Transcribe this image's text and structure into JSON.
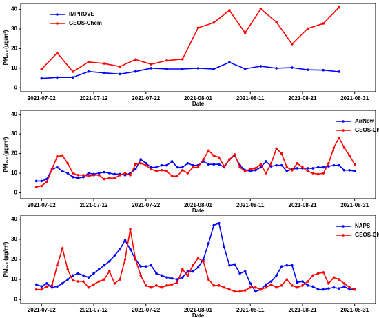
{
  "chart_data": [
    {
      "type": "line",
      "x_label": "Date",
      "y_label": "PM₂.₅ (μg/m³)",
      "legend": "upper left",
      "x": [
        "2021-07-02",
        "2021-07-05",
        "2021-07-08",
        "2021-07-11",
        "2021-07-14",
        "2021-07-17",
        "2021-07-20",
        "2021-07-23",
        "2021-07-26",
        "2021-07-29",
        "2021-08-01",
        "2021-08-04",
        "2021-08-07",
        "2021-08-10",
        "2021-08-13",
        "2021-08-16",
        "2021-08-19",
        "2021-08-22",
        "2021-08-25",
        "2021-08-28"
      ],
      "series": [
        {
          "name": "IMPROVE",
          "color": "#0000ff",
          "values": [
            4.8,
            5.3,
            5.3,
            8.3,
            7.6,
            7.0,
            8.3,
            10.0,
            9.6,
            9.6,
            10.0,
            9.6,
            13.0,
            9.7,
            11.0,
            10.0,
            10.3,
            9.2,
            9.0,
            8.2
          ]
        },
        {
          "name": "GEOS-Chem",
          "color": "#ff0000",
          "values": [
            9.5,
            17.8,
            8.2,
            13.2,
            12.4,
            10.8,
            14.4,
            12.0,
            13.9,
            14.6,
            30.6,
            33.2,
            39.5,
            28.0,
            40.2,
            33.5,
            22.3,
            30.2,
            32.8,
            41.0
          ]
        }
      ],
      "xlim": [
        "2021-06-28",
        "2021-09-04"
      ],
      "xticks": [
        "2021-07-02",
        "2021-07-12",
        "2021-07-22",
        "2021-08-01",
        "2021-08-11",
        "2021-08-21",
        "2021-08-31"
      ],
      "ylim": [
        -2,
        43
      ],
      "yticks": [
        0,
        10,
        20,
        30,
        40
      ]
    },
    {
      "type": "line",
      "x_label": "Date",
      "y_label": "PM₂.₅ (μg/m³)",
      "legend": "upper right",
      "x": [
        "2021-07-01",
        "2021-07-02",
        "2021-07-03",
        "2021-07-04",
        "2021-07-05",
        "2021-07-06",
        "2021-07-07",
        "2021-07-08",
        "2021-07-09",
        "2021-07-10",
        "2021-07-11",
        "2021-07-12",
        "2021-07-13",
        "2021-07-14",
        "2021-07-15",
        "2021-07-16",
        "2021-07-17",
        "2021-07-18",
        "2021-07-19",
        "2021-07-20",
        "2021-07-21",
        "2021-07-22",
        "2021-07-23",
        "2021-07-24",
        "2021-07-25",
        "2021-07-26",
        "2021-07-27",
        "2021-07-28",
        "2021-07-29",
        "2021-07-30",
        "2021-07-31",
        "2021-08-01",
        "2021-08-02",
        "2021-08-03",
        "2021-08-04",
        "2021-08-05",
        "2021-08-06",
        "2021-08-07",
        "2021-08-08",
        "2021-08-09",
        "2021-08-10",
        "2021-08-11",
        "2021-08-12",
        "2021-08-13",
        "2021-08-14",
        "2021-08-15",
        "2021-08-16",
        "2021-08-17",
        "2021-08-18",
        "2021-08-19",
        "2021-08-20",
        "2021-08-21",
        "2021-08-22",
        "2021-08-23",
        "2021-08-24",
        "2021-08-25",
        "2021-08-26",
        "2021-08-27",
        "2021-08-28",
        "2021-08-29",
        "2021-08-30",
        "2021-08-31"
      ],
      "series": [
        {
          "name": "AirNow",
          "color": "#0000ff",
          "values": [
            6,
            6,
            7,
            12,
            13,
            11,
            10,
            8,
            7.5,
            8,
            10,
            9.5,
            10,
            10.5,
            10,
            9.5,
            9.5,
            9,
            10,
            12,
            17,
            15,
            13,
            13,
            14,
            14,
            16,
            13,
            13,
            15,
            14,
            14,
            16,
            14.5,
            14.5,
            14.5,
            13,
            17,
            19,
            14,
            11.5,
            11,
            11.5,
            13,
            16,
            13.5,
            14,
            14,
            11,
            12,
            12.5,
            12.5,
            12.5,
            12.5,
            13,
            13,
            13.5,
            14,
            14,
            11.5,
            11.5,
            11
          ]
        },
        {
          "name": "GEOS-Chem",
          "color": "#ff0000",
          "values": [
            3,
            3.5,
            5.5,
            12,
            18.5,
            19,
            15,
            10,
            9,
            9,
            8.5,
            9,
            9,
            7,
            7.5,
            7.5,
            9,
            10,
            9,
            14.5,
            15,
            14,
            12,
            11,
            11.5,
            11,
            8.5,
            8.5,
            11.5,
            10,
            13,
            13,
            17,
            21.5,
            19,
            18,
            13.5,
            17,
            19.5,
            13,
            11,
            12,
            12.5,
            14.5,
            10,
            15,
            22.5,
            20,
            13,
            11.5,
            15,
            13,
            11,
            10,
            9.5,
            10,
            15,
            23,
            28,
            23,
            19,
            14.5
          ]
        }
      ],
      "xlim": [
        "2021-06-28",
        "2021-09-04"
      ],
      "xticks": [
        "2021-07-02",
        "2021-07-12",
        "2021-07-22",
        "2021-08-01",
        "2021-08-11",
        "2021-08-21",
        "2021-08-31"
      ],
      "ylim": [
        -3,
        42
      ],
      "yticks": [
        0,
        10,
        20,
        30,
        40
      ]
    },
    {
      "type": "line",
      "x_label": "Date",
      "y_label": "PM₂.₅ (μg/m³)",
      "legend": "upper right",
      "x": [
        "2021-07-01",
        "2021-07-02",
        "2021-07-03",
        "2021-07-04",
        "2021-07-05",
        "2021-07-06",
        "2021-07-07",
        "2021-07-08",
        "2021-07-09",
        "2021-07-10",
        "2021-07-11",
        "2021-07-12",
        "2021-07-13",
        "2021-07-14",
        "2021-07-15",
        "2021-07-16",
        "2021-07-17",
        "2021-07-18",
        "2021-07-19",
        "2021-07-20",
        "2021-07-21",
        "2021-07-22",
        "2021-07-23",
        "2021-07-24",
        "2021-07-25",
        "2021-07-26",
        "2021-07-27",
        "2021-07-28",
        "2021-07-29",
        "2021-07-30",
        "2021-07-31",
        "2021-08-01",
        "2021-08-02",
        "2021-08-03",
        "2021-08-04",
        "2021-08-05",
        "2021-08-06",
        "2021-08-07",
        "2021-08-08",
        "2021-08-09",
        "2021-08-10",
        "2021-08-11",
        "2021-08-12",
        "2021-08-13",
        "2021-08-14",
        "2021-08-15",
        "2021-08-16",
        "2021-08-17",
        "2021-08-18",
        "2021-08-19",
        "2021-08-20",
        "2021-08-21",
        "2021-08-22",
        "2021-08-23",
        "2021-08-24",
        "2021-08-25",
        "2021-08-26",
        "2021-08-27",
        "2021-08-28",
        "2021-08-29",
        "2021-08-30",
        "2021-08-31"
      ],
      "series": [
        {
          "name": "NAPS",
          "color": "#0000ff",
          "values": [
            7.5,
            6.5,
            8,
            6,
            6.5,
            8,
            10,
            12,
            13,
            12,
            11,
            13,
            15,
            17,
            19,
            22,
            25,
            29.5,
            25,
            20,
            16.5,
            16.5,
            17,
            13,
            12,
            11,
            10.5,
            10,
            11,
            14,
            14,
            16,
            20,
            28,
            37,
            38,
            26,
            17,
            17.5,
            13,
            14,
            8,
            4,
            5,
            7.5,
            9,
            12,
            16.5,
            17,
            17,
            8.5,
            9,
            7,
            6.5,
            5,
            5,
            5.5,
            6,
            5.5,
            6.5,
            5,
            5
          ]
        },
        {
          "name": "GEOS-Chem",
          "color": "#ff0000",
          "values": [
            5,
            5,
            6.5,
            7,
            17,
            25.5,
            15,
            9.5,
            9,
            9,
            6,
            7.5,
            9,
            10,
            14,
            8,
            10,
            20,
            35,
            20,
            12,
            7,
            6,
            7,
            6,
            7,
            7.5,
            8.5,
            15,
            12,
            17,
            20.5,
            19,
            10,
            7,
            7,
            6,
            5,
            4,
            4,
            4.5,
            6,
            6,
            5,
            6,
            7.5,
            6,
            7,
            10,
            7,
            6,
            7,
            9,
            12,
            13,
            13.5,
            8,
            11,
            10,
            8,
            6,
            5
          ]
        }
      ],
      "xlim": [
        "2021-06-28",
        "2021-09-04"
      ],
      "xticks": [
        "2021-07-02",
        "2021-07-12",
        "2021-07-22",
        "2021-08-01",
        "2021-08-11",
        "2021-08-21",
        "2021-08-31"
      ],
      "ylim": [
        -2,
        42
      ],
      "yticks": [
        0,
        10,
        20,
        30,
        40
      ]
    }
  ]
}
